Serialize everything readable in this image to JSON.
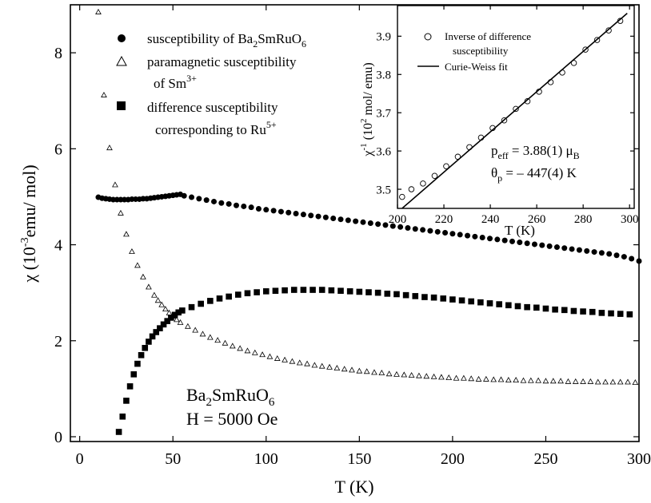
{
  "chart_data": [
    {
      "type": "scatter",
      "xlabel": "T (K)",
      "ylabel_parts": [
        "χ (10",
        "-3",
        "emu/ mol)"
      ],
      "xlim": [
        0,
        300
      ],
      "ylim": [
        0,
        9
      ],
      "x_ticks": [
        0,
        50,
        100,
        150,
        200,
        250,
        300
      ],
      "y_ticks": [
        0,
        2,
        4,
        6,
        8
      ],
      "grid": false,
      "legend_position": "top-center",
      "legend": [
        {
          "marker": "filled-circle",
          "parts": [
            "susceptibility of Ba",
            "2",
            "SmRuO",
            "6"
          ]
        },
        {
          "marker": "open-triangle",
          "line1": "paramagnetic susceptibility",
          "line2_parts": [
            "of Sm",
            "3+"
          ]
        },
        {
          "marker": "filled-square",
          "line1": "difference susceptibility",
          "line2_parts": [
            "corresponding to Ru",
            "5+"
          ]
        }
      ],
      "annotation": {
        "line1_parts": [
          "Ba",
          "2",
          "SmRuO",
          "6"
        ],
        "line2": "H = 5000 Oe"
      },
      "series": [
        {
          "marker": "filled-circle",
          "x": [
            10,
            12,
            14,
            16,
            18,
            20,
            22,
            24,
            26,
            28,
            30,
            32,
            34,
            36,
            38,
            40,
            42,
            44,
            46,
            48,
            50,
            52,
            54,
            56,
            60,
            64,
            68,
            72,
            76,
            80,
            84,
            88,
            92,
            96,
            100,
            104,
            108,
            112,
            116,
            120,
            124,
            128,
            132,
            136,
            140,
            144,
            148,
            152,
            156,
            160,
            164,
            168,
            172,
            176,
            180,
            184,
            188,
            192,
            196,
            200,
            204,
            208,
            212,
            216,
            220,
            224,
            228,
            232,
            236,
            240,
            244,
            248,
            252,
            256,
            260,
            264,
            268,
            272,
            276,
            280,
            284,
            288,
            292,
            296,
            300
          ],
          "y": [
            4.99,
            4.97,
            4.96,
            4.95,
            4.94,
            4.94,
            4.94,
            4.94,
            4.94,
            4.95,
            4.95,
            4.95,
            4.96,
            4.96,
            4.97,
            4.98,
            4.99,
            5.0,
            5.01,
            5.02,
            5.03,
            5.04,
            5.05,
            5.02,
            4.99,
            4.96,
            4.93,
            4.9,
            4.87,
            4.85,
            4.82,
            4.8,
            4.78,
            4.75,
            4.73,
            4.71,
            4.69,
            4.67,
            4.65,
            4.63,
            4.61,
            4.59,
            4.57,
            4.55,
            4.53,
            4.51,
            4.49,
            4.47,
            4.45,
            4.43,
            4.41,
            4.39,
            4.37,
            4.35,
            4.33,
            4.31,
            4.29,
            4.27,
            4.25,
            4.23,
            4.21,
            4.19,
            4.17,
            4.15,
            4.13,
            4.11,
            4.09,
            4.07,
            4.05,
            4.03,
            4.01,
            3.99,
            3.97,
            3.95,
            3.93,
            3.91,
            3.89,
            3.87,
            3.85,
            3.83,
            3.81,
            3.78,
            3.75,
            3.71,
            3.66
          ]
        },
        {
          "marker": "open-triangle",
          "x": [
            10,
            13,
            16,
            19,
            22,
            25,
            28,
            31,
            34,
            37,
            40,
            42,
            44,
            46,
            48,
            50,
            52,
            54,
            58,
            62,
            66,
            70,
            74,
            78,
            82,
            86,
            90,
            94,
            98,
            102,
            106,
            110,
            114,
            118,
            122,
            126,
            130,
            134,
            138,
            142,
            146,
            150,
            154,
            158,
            162,
            166,
            170,
            174,
            178,
            182,
            186,
            190,
            194,
            198,
            202,
            206,
            210,
            214,
            218,
            222,
            226,
            230,
            234,
            238,
            242,
            246,
            250,
            254,
            258,
            262,
            266,
            270,
            274,
            278,
            282,
            286,
            290,
            294,
            298
          ],
          "y": [
            8.85,
            7.12,
            6.02,
            5.25,
            4.66,
            4.22,
            3.86,
            3.57,
            3.33,
            3.12,
            2.95,
            2.84,
            2.75,
            2.66,
            2.58,
            2.51,
            2.44,
            2.38,
            2.3,
            2.22,
            2.14,
            2.07,
            2.01,
            1.95,
            1.89,
            1.84,
            1.79,
            1.75,
            1.71,
            1.67,
            1.63,
            1.6,
            1.57,
            1.54,
            1.52,
            1.49,
            1.47,
            1.45,
            1.43,
            1.41,
            1.39,
            1.37,
            1.36,
            1.34,
            1.33,
            1.31,
            1.3,
            1.29,
            1.28,
            1.27,
            1.26,
            1.25,
            1.24,
            1.23,
            1.22,
            1.22,
            1.21,
            1.2,
            1.2,
            1.19,
            1.19,
            1.18,
            1.18,
            1.17,
            1.17,
            1.17,
            1.16,
            1.16,
            1.16,
            1.15,
            1.15,
            1.15,
            1.15,
            1.14,
            1.14,
            1.14,
            1.14,
            1.14,
            1.13
          ]
        },
        {
          "marker": "filled-square",
          "x": [
            21,
            23,
            25,
            27,
            29,
            31,
            33,
            35,
            37,
            39,
            41,
            43,
            45,
            47,
            49,
            51,
            53,
            55,
            60,
            65,
            70,
            75,
            80,
            85,
            90,
            95,
            100,
            105,
            110,
            115,
            120,
            125,
            130,
            135,
            140,
            145,
            150,
            155,
            160,
            165,
            170,
            175,
            180,
            185,
            190,
            195,
            200,
            205,
            210,
            215,
            220,
            225,
            230,
            235,
            240,
            245,
            250,
            255,
            260,
            265,
            270,
            275,
            280,
            285,
            290,
            295
          ],
          "y": [
            0.1,
            0.42,
            0.75,
            1.05,
            1.3,
            1.52,
            1.7,
            1.85,
            1.98,
            2.09,
            2.18,
            2.26,
            2.34,
            2.41,
            2.48,
            2.54,
            2.59,
            2.63,
            2.7,
            2.77,
            2.83,
            2.88,
            2.92,
            2.96,
            2.99,
            3.01,
            3.03,
            3.04,
            3.05,
            3.06,
            3.06,
            3.06,
            3.06,
            3.05,
            3.04,
            3.03,
            3.02,
            3.01,
            3.0,
            2.98,
            2.97,
            2.95,
            2.93,
            2.91,
            2.9,
            2.88,
            2.86,
            2.84,
            2.82,
            2.8,
            2.78,
            2.76,
            2.74,
            2.72,
            2.7,
            2.69,
            2.67,
            2.65,
            2.64,
            2.62,
            2.61,
            2.6,
            2.58,
            2.57,
            2.56,
            2.55
          ]
        }
      ]
    },
    {
      "type": "scatter",
      "subtype": "inset",
      "xlabel": "T (K)",
      "ylabel_parts": [
        "χ",
        "-1",
        " (10",
        "2",
        " mol/ emu)"
      ],
      "xlim": [
        200,
        302
      ],
      "ylim": [
        3.45,
        3.98
      ],
      "x_ticks": [
        200,
        220,
        240,
        260,
        280,
        300
      ],
      "y_ticks": [
        3.5,
        3.6,
        3.7,
        3.8,
        3.9
      ],
      "y_tick_labels": [
        "3.5",
        "3.6",
        "3.7",
        "3.8",
        "3.9"
      ],
      "grid": false,
      "legend_position": "top-right",
      "legend": [
        {
          "marker": "open-circle",
          "line1": "Inverse of difference",
          "line2": "susceptibility"
        },
        {
          "marker": "line",
          "line1": "Curie-Weiss fit"
        }
      ],
      "fit_params": {
        "line1_parts": [
          "p",
          "eff",
          " = 3.88(1) μ",
          "B"
        ],
        "line2_parts": [
          "θ",
          "p",
          " = – 447(4) K"
        ]
      },
      "series": [
        {
          "name": "Inverse of difference susceptibility",
          "marker": "open-circle",
          "x": [
            202,
            206,
            211,
            216,
            221,
            226,
            231,
            236,
            241,
            246,
            251,
            256,
            261,
            266,
            271,
            276,
            281,
            286,
            291,
            296
          ],
          "y": [
            3.48,
            3.5,
            3.515,
            3.535,
            3.56,
            3.585,
            3.61,
            3.635,
            3.66,
            3.68,
            3.71,
            3.73,
            3.755,
            3.78,
            3.805,
            3.83,
            3.865,
            3.89,
            3.915,
            3.94
          ]
        },
        {
          "name": "Curie-Weiss fit",
          "marker": "line",
          "x": [
            202,
            299
          ],
          "y": [
            3.45,
            3.96
          ]
        }
      ]
    }
  ]
}
